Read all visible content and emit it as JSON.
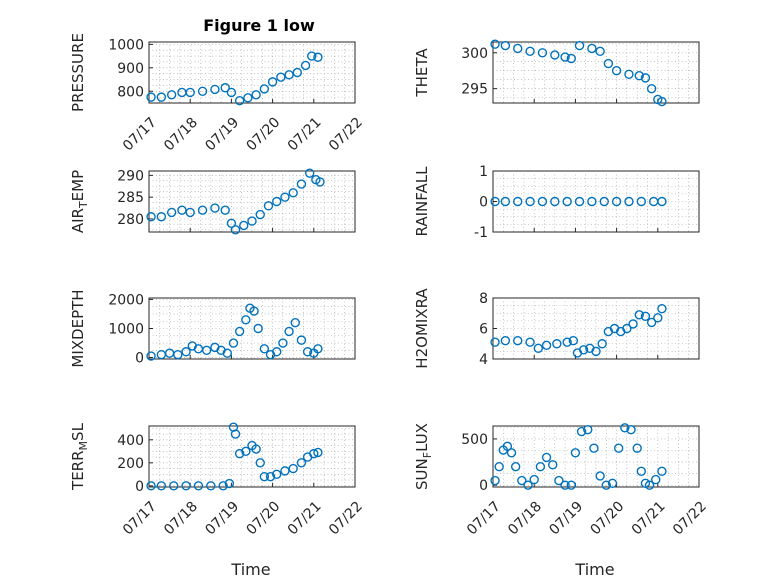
{
  "figure": {
    "title": "Figure 1 low",
    "marker_color": "#0072BD"
  },
  "chart_data": [
    {
      "type": "scatter",
      "name": "PRESSURE",
      "ylabel": "PRESSURE",
      "yticks": [
        800,
        900,
        1000
      ],
      "ylim": [
        750,
        1010
      ],
      "xlim": [
        0,
        5
      ],
      "xticks": [
        0,
        1,
        2,
        3,
        4,
        5
      ],
      "xticklabels": [
        "07/17",
        "07/18",
        "07/19",
        "07/20",
        "07/21",
        "07/22"
      ],
      "x": [
        0.05,
        0.3,
        0.55,
        0.8,
        1.0,
        1.3,
        1.6,
        1.85,
        2.0,
        2.2,
        2.4,
        2.6,
        2.8,
        3.0,
        3.2,
        3.4,
        3.6,
        3.8,
        3.95,
        4.1
      ],
      "y": [
        775,
        775,
        785,
        795,
        795,
        800,
        808,
        815,
        795,
        760,
        772,
        785,
        810,
        840,
        860,
        870,
        880,
        910,
        950,
        945
      ]
    },
    {
      "type": "scatter",
      "name": "THETA",
      "ylabel": "THETA",
      "yticks": [
        295,
        300
      ],
      "ylim": [
        293,
        301.5
      ],
      "xlim": [
        0,
        5
      ],
      "xticks": [
        0,
        1,
        2,
        3,
        4,
        5
      ],
      "xticklabels": [
        "",
        "",
        "",
        "",
        "",
        ""
      ],
      "x": [
        0.05,
        0.3,
        0.6,
        0.9,
        1.2,
        1.5,
        1.75,
        1.9,
        2.1,
        2.4,
        2.6,
        2.8,
        3.0,
        3.3,
        3.55,
        3.7,
        3.85,
        4.0,
        4.1
      ],
      "y": [
        301.2,
        301.0,
        300.6,
        300.2,
        300.0,
        299.7,
        299.4,
        299.2,
        301.0,
        300.6,
        300.2,
        298.5,
        297.5,
        297.0,
        296.8,
        296.5,
        295.0,
        293.5,
        293.2
      ]
    },
    {
      "type": "scatter",
      "name": "AIR_TEMP",
      "ylabel": "AIR_TEMP",
      "yticks": [
        280,
        285,
        290
      ],
      "ylim": [
        277,
        291
      ],
      "xlim": [
        0,
        5
      ],
      "xticks": [
        0,
        1,
        2,
        3,
        4,
        5
      ],
      "xticklabels": [
        "",
        "",
        "",
        "",
        "",
        ""
      ],
      "x": [
        0.05,
        0.3,
        0.55,
        0.8,
        1.0,
        1.3,
        1.6,
        1.85,
        2.0,
        2.1,
        2.3,
        2.5,
        2.7,
        2.9,
        3.1,
        3.3,
        3.5,
        3.7,
        3.9,
        4.05,
        4.15
      ],
      "y": [
        280.5,
        280.5,
        281.5,
        282.0,
        281.5,
        282.0,
        282.5,
        282.0,
        279.0,
        277.5,
        278.5,
        279.5,
        281.0,
        283.0,
        284.0,
        285.0,
        286.0,
        288.0,
        290.5,
        289.0,
        288.5
      ]
    },
    {
      "type": "scatter",
      "name": "RAINFALL",
      "ylabel": "RAINFALL",
      "yticks": [
        -1,
        0,
        1
      ],
      "ylim": [
        -1,
        1
      ],
      "xlim": [
        0,
        5
      ],
      "xticks": [
        0,
        1,
        2,
        3,
        4,
        5
      ],
      "xticklabels": [
        "",
        "",
        "",
        "",
        "",
        ""
      ],
      "x": [
        0.05,
        0.3,
        0.6,
        0.9,
        1.2,
        1.5,
        1.8,
        2.1,
        2.4,
        2.7,
        3.0,
        3.3,
        3.6,
        3.9,
        4.1
      ],
      "y": [
        0,
        0,
        0,
        0,
        0,
        0,
        0,
        0,
        0,
        0,
        0,
        0,
        0,
        0,
        0
      ]
    },
    {
      "type": "scatter",
      "name": "MIXDEPTH",
      "ylabel": "MIXDEPTH",
      "yticks": [
        0,
        1000,
        2000
      ],
      "ylim": [
        -50,
        2050
      ],
      "xlim": [
        0,
        5
      ],
      "xticks": [
        0,
        1,
        2,
        3,
        4,
        5
      ],
      "xticklabels": [
        "",
        "",
        "",
        "",
        "",
        ""
      ],
      "x": [
        0.05,
        0.3,
        0.5,
        0.7,
        0.9,
        1.05,
        1.2,
        1.4,
        1.6,
        1.75,
        1.9,
        2.05,
        2.2,
        2.35,
        2.45,
        2.55,
        2.65,
        2.8,
        2.95,
        3.1,
        3.25,
        3.4,
        3.55,
        3.7,
        3.85,
        4.0,
        4.1
      ],
      "y": [
        50,
        100,
        150,
        100,
        200,
        400,
        300,
        250,
        350,
        250,
        150,
        500,
        900,
        1300,
        1700,
        1600,
        1000,
        300,
        100,
        200,
        500,
        900,
        1200,
        600,
        200,
        150,
        300
      ]
    },
    {
      "type": "scatter",
      "name": "H2OMIXRA",
      "ylabel": "H2OMIXRA",
      "yticks": [
        4,
        6,
        8
      ],
      "ylim": [
        4,
        8
      ],
      "xlim": [
        0,
        5
      ],
      "xticks": [
        0,
        1,
        2,
        3,
        4,
        5
      ],
      "xticklabels": [
        "",
        "",
        "",
        "",
        "",
        ""
      ],
      "x": [
        0.05,
        0.3,
        0.6,
        0.9,
        1.1,
        1.3,
        1.55,
        1.8,
        1.95,
        2.05,
        2.2,
        2.35,
        2.5,
        2.65,
        2.8,
        2.95,
        3.1,
        3.25,
        3.4,
        3.55,
        3.7,
        3.85,
        4.0,
        4.1
      ],
      "y": [
        5.1,
        5.2,
        5.2,
        5.1,
        4.7,
        4.9,
        5.0,
        5.1,
        5.2,
        4.4,
        4.6,
        4.7,
        4.5,
        5.0,
        5.8,
        6.0,
        5.8,
        6.0,
        6.3,
        6.9,
        6.8,
        6.4,
        6.7,
        7.3
      ]
    },
    {
      "type": "scatter",
      "name": "TERR_MSL",
      "ylabel": "TERR_MSL",
      "yticks": [
        0,
        200,
        400
      ],
      "ylim": [
        -10,
        520
      ],
      "xlim": [
        0,
        5
      ],
      "xticks": [
        0,
        1,
        2,
        3,
        4,
        5
      ],
      "xticklabels": [
        "07/17",
        "07/18",
        "07/19",
        "07/20",
        "07/21",
        "07/22"
      ],
      "x": [
        0.05,
        0.3,
        0.6,
        0.9,
        1.2,
        1.5,
        1.8,
        1.95,
        2.05,
        2.1,
        2.2,
        2.35,
        2.5,
        2.6,
        2.7,
        2.8,
        2.95,
        3.1,
        3.3,
        3.5,
        3.7,
        3.85,
        4.0,
        4.1
      ],
      "y": [
        0,
        0,
        0,
        0,
        0,
        0,
        0,
        20,
        510,
        450,
        280,
        300,
        350,
        320,
        200,
        80,
        80,
        100,
        130,
        150,
        200,
        250,
        280,
        290
      ]
    },
    {
      "type": "scatter",
      "name": "SUN_FLUX",
      "ylabel": "SUN_FLUX",
      "yticks": [
        0,
        500
      ],
      "ylim": [
        -20,
        640
      ],
      "xlim": [
        0,
        5
      ],
      "xticks": [
        0,
        1,
        2,
        3,
        4,
        5
      ],
      "xticklabels": [
        "07/17",
        "07/18",
        "07/19",
        "07/20",
        "07/21",
        "07/22"
      ],
      "x": [
        0.05,
        0.15,
        0.25,
        0.35,
        0.45,
        0.55,
        0.7,
        0.85,
        1.0,
        1.15,
        1.3,
        1.45,
        1.6,
        1.75,
        1.9,
        2.0,
        2.15,
        2.3,
        2.45,
        2.6,
        2.75,
        2.9,
        3.05,
        3.2,
        3.35,
        3.5,
        3.6,
        3.7,
        3.8,
        3.95,
        4.1
      ],
      "y": [
        50,
        200,
        380,
        420,
        350,
        200,
        50,
        0,
        60,
        200,
        300,
        220,
        50,
        0,
        0,
        350,
        580,
        600,
        400,
        100,
        0,
        20,
        400,
        620,
        600,
        400,
        150,
        20,
        0,
        60,
        150
      ]
    }
  ]
}
